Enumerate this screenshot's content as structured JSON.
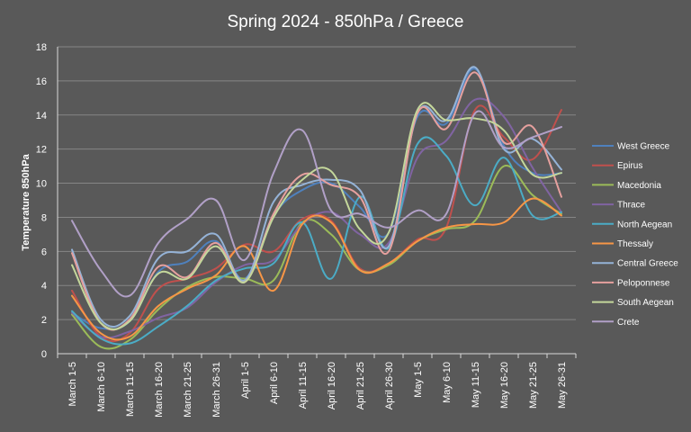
{
  "chart_data": {
    "type": "line",
    "title": "Spring 2024 - 850hPa / Greece",
    "xlabel": "",
    "ylabel": "Temperature 850hPa",
    "ylim": [
      0,
      18
    ],
    "yticks": [
      0,
      2,
      4,
      6,
      8,
      10,
      12,
      14,
      16,
      18
    ],
    "grid": "horizontal",
    "legend": "right",
    "smooth": true,
    "categories": [
      "March 1-5",
      "March 6-10",
      "March 11-15",
      "March 16-20",
      "March 21-25",
      "March 26-31",
      "April 1-5",
      "April 6-10",
      "April 11-15",
      "April 16-20",
      "April 21-25",
      "April 26-30",
      "May 1-5",
      "May 6-10",
      "May 11-15",
      "May 16-20",
      "May 21-25",
      "May 26-31"
    ],
    "series": [
      {
        "name": "West Greece",
        "color": "#4f81bd",
        "values": [
          2.4,
          1.5,
          1.9,
          4.8,
          5.4,
          6.6,
          4.4,
          8.1,
          9.6,
          10.0,
          8.6,
          7.1,
          13.9,
          13.5,
          16.7,
          12.2,
          10.6,
          10.6
        ]
      },
      {
        "name": "Epirus",
        "color": "#c0504d",
        "values": [
          3.7,
          1.0,
          1.2,
          3.8,
          4.4,
          5.0,
          6.4,
          6.0,
          7.9,
          7.8,
          5.0,
          5.3,
          6.7,
          7.4,
          14.3,
          12.7,
          11.4,
          14.3
        ]
      },
      {
        "name": "Macedonia",
        "color": "#9bbb59",
        "values": [
          2.3,
          0.4,
          0.8,
          2.6,
          3.9,
          4.5,
          4.4,
          4.3,
          7.7,
          7.0,
          4.9,
          5.2,
          6.6,
          7.3,
          7.8,
          11.0,
          9.3,
          8.2
        ]
      },
      {
        "name": "Thrace",
        "color": "#8064a2",
        "values": [
          2.4,
          1.0,
          1.3,
          2.1,
          2.7,
          4.2,
          5.2,
          5.5,
          7.6,
          8.3,
          7.0,
          6.5,
          11.5,
          12.5,
          14.9,
          13.9,
          10.9,
          8.3
        ]
      },
      {
        "name": "North Aegean",
        "color": "#4bacc6",
        "values": [
          2.5,
          0.9,
          0.6,
          1.6,
          2.8,
          4.3,
          5.0,
          5.3,
          7.7,
          4.4,
          9.2,
          6.2,
          12.3,
          11.6,
          8.7,
          11.5,
          8.1,
          8.3
        ]
      },
      {
        "name": "Thessaly",
        "color": "#f79646",
        "values": [
          3.4,
          1.2,
          1.0,
          2.8,
          3.8,
          4.6,
          6.3,
          3.7,
          7.6,
          7.7,
          4.9,
          5.3,
          6.6,
          7.4,
          7.6,
          7.7,
          9.1,
          8.1
        ]
      },
      {
        "name": "Central Greece",
        "color": "#95b3d7",
        "values": [
          6.1,
          2.0,
          2.2,
          5.6,
          6.0,
          7.0,
          4.3,
          8.9,
          9.9,
          10.2,
          9.6,
          6.3,
          14.1,
          13.7,
          16.8,
          12.0,
          12.6,
          10.8
        ]
      },
      {
        "name": "Peloponnese",
        "color": "#e6a09e",
        "values": [
          5.9,
          1.8,
          2.0,
          5.1,
          4.5,
          6.5,
          4.2,
          8.2,
          10.5,
          9.9,
          9.2,
          6.0,
          14.1,
          13.2,
          16.5,
          12.4,
          13.3,
          9.2
        ]
      },
      {
        "name": "South Aegean",
        "color": "#c4d79b",
        "values": [
          5.2,
          1.8,
          1.9,
          4.7,
          4.4,
          6.3,
          4.2,
          8.0,
          10.2,
          10.7,
          7.3,
          7.1,
          14.3,
          13.7,
          13.8,
          13.1,
          10.5,
          10.6
        ]
      },
      {
        "name": "Crete",
        "color": "#b1a0c7",
        "values": [
          7.8,
          4.9,
          3.4,
          6.5,
          7.9,
          9.0,
          5.5,
          10.6,
          13.1,
          8.4,
          8.2,
          7.4,
          8.4,
          8.2,
          14.1,
          12.1,
          12.7,
          13.3
        ]
      }
    ]
  }
}
